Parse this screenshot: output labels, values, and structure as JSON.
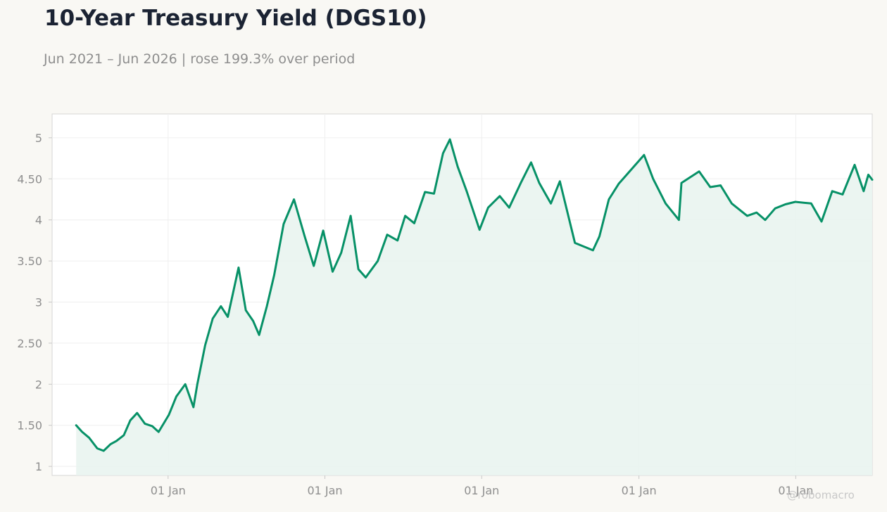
{
  "header": {
    "title": "10-Year Treasury Yield (DGS10)",
    "subtitle": "Jun 2021 – Jun 2026 | rose 199.3% over period"
  },
  "watermark": "@robomacro",
  "colors": {
    "line": "#079167",
    "fill": "#e9f4ef",
    "background": "#f9f8f4",
    "plot_background": "#ffffff"
  },
  "chart_data": {
    "type": "area",
    "title": "10-Year Treasury Yield (DGS10)",
    "subtitle": "Jun 2021 – Jun 2026 | rose 199.3% over period",
    "xlabel": "",
    "ylabel": "",
    "x_range": [
      "2021-04-06",
      "2026-06-28"
    ],
    "ylim": [
      0.89,
      5.29
    ],
    "grid": true,
    "legend": "none",
    "x_ticks": [
      {
        "date": "2022-01-01",
        "label": "01 Jan"
      },
      {
        "date": "2023-01-01",
        "label": "01 Jan"
      },
      {
        "date": "2024-01-01",
        "label": "01 Jan"
      },
      {
        "date": "2025-01-01",
        "label": "01 Jan"
      },
      {
        "date": "2026-01-01",
        "label": "01 Jan"
      }
    ],
    "y_ticks": [
      {
        "value": 1,
        "label": "1"
      },
      {
        "value": 1.5,
        "label": "1.50"
      },
      {
        "value": 2,
        "label": "2"
      },
      {
        "value": 2.5,
        "label": "2.50"
      },
      {
        "value": 3,
        "label": "3"
      },
      {
        "value": 3.5,
        "label": "3.50"
      },
      {
        "value": 4,
        "label": "4"
      },
      {
        "value": 4.5,
        "label": "4.50"
      },
      {
        "value": 5,
        "label": "5"
      }
    ],
    "series": [
      {
        "x": [
          "2021-06-01",
          "2021-06-15",
          "2021-07-01",
          "2021-07-20",
          "2021-08-04",
          "2021-08-20",
          "2021-09-03",
          "2021-09-20",
          "2021-10-05",
          "2021-10-21",
          "2021-11-08",
          "2021-11-25",
          "2021-12-10",
          "2022-01-03",
          "2022-01-20",
          "2022-02-10",
          "2022-03-01",
          "2022-03-10",
          "2022-03-28",
          "2022-04-15",
          "2022-05-04",
          "2022-05-20",
          "2022-06-14",
          "2022-07-01",
          "2022-07-18",
          "2022-08-01",
          "2022-08-19",
          "2022-09-05",
          "2022-09-27",
          "2022-10-21",
          "2022-11-15",
          "2022-12-06",
          "2022-12-28",
          "2023-01-19",
          "2023-02-08",
          "2023-03-02",
          "2023-03-20",
          "2023-04-06",
          "2023-05-04",
          "2023-05-26",
          "2023-06-19",
          "2023-07-07",
          "2023-07-28",
          "2023-08-22",
          "2023-09-12",
          "2023-10-03",
          "2023-10-19",
          "2023-11-06",
          "2023-11-27",
          "2023-12-27",
          "2024-01-16",
          "2024-02-12",
          "2024-03-05",
          "2024-04-01",
          "2024-04-25",
          "2024-05-14",
          "2024-06-10",
          "2024-07-01",
          "2024-08-05",
          "2024-09-16",
          "2024-10-01",
          "2024-10-23",
          "2024-11-15",
          "2025-01-13",
          "2025-02-03",
          "2025-03-04",
          "2025-04-04",
          "2025-04-10",
          "2025-05-21",
          "2025-06-16",
          "2025-07-10",
          "2025-08-05",
          "2025-09-10",
          "2025-10-02",
          "2025-10-22",
          "2025-11-14",
          "2025-12-08",
          "2025-12-31",
          "2026-02-06",
          "2026-03-02",
          "2026-03-27",
          "2026-04-20",
          "2026-05-18",
          "2026-06-08",
          "2026-06-19",
          "2026-06-28"
        ],
        "values": [
          1.5,
          1.42,
          1.35,
          1.22,
          1.19,
          1.27,
          1.31,
          1.38,
          1.56,
          1.65,
          1.52,
          1.49,
          1.42,
          1.63,
          1.85,
          2.0,
          1.72,
          2.0,
          2.47,
          2.8,
          2.95,
          2.82,
          3.42,
          2.9,
          2.77,
          2.6,
          2.95,
          3.33,
          3.95,
          4.25,
          3.8,
          3.44,
          3.87,
          3.37,
          3.6,
          4.05,
          3.4,
          3.3,
          3.5,
          3.82,
          3.75,
          4.05,
          3.96,
          4.34,
          4.32,
          4.81,
          4.98,
          4.65,
          4.35,
          3.88,
          4.15,
          4.29,
          4.15,
          4.45,
          4.7,
          4.45,
          4.2,
          4.47,
          3.72,
          3.63,
          3.8,
          4.25,
          4.44,
          4.79,
          4.5,
          4.2,
          4.0,
          4.45,
          4.59,
          4.4,
          4.42,
          4.2,
          4.05,
          4.09,
          4.0,
          4.14,
          4.19,
          4.22,
          4.2,
          3.98,
          4.35,
          4.31,
          4.67,
          4.35,
          4.55,
          4.49
        ]
      }
    ]
  }
}
